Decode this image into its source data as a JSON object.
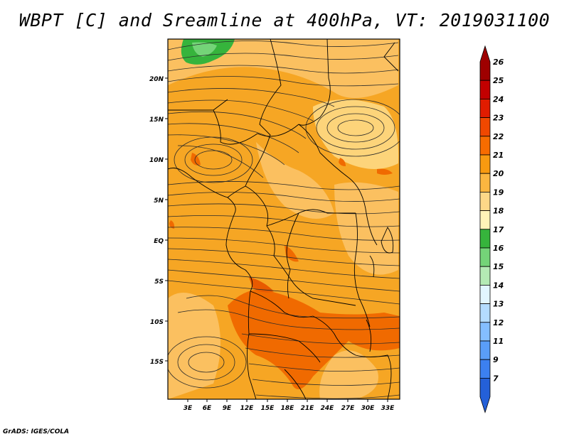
{
  "title": "WBPT [C] and Sreamline at 400hPa, VT: 2019031100",
  "footer": "GrADS: IGES/COLA",
  "map": {
    "lat_labels": [
      "20N",
      "15N",
      "10N",
      "5N",
      "EQ",
      "5S",
      "10S",
      "15S"
    ],
    "lon_labels": [
      "3E",
      "6E",
      "9E",
      "12E",
      "15E",
      "18E",
      "21E",
      "24E",
      "27E",
      "30E",
      "33E"
    ],
    "field": "wet-bulb potential temperature",
    "overlay": "streamlines"
  },
  "colorbar": {
    "labels": [
      "26",
      "25",
      "24",
      "23",
      "22",
      "21",
      "20",
      "19",
      "18",
      "17",
      "16",
      "15",
      "14",
      "13",
      "12",
      "11",
      "9",
      "7"
    ],
    "colors": [
      "#9e0000",
      "#c20000",
      "#e01c00",
      "#f04800",
      "#f76c00",
      "#f89a10",
      "#fbb640",
      "#fdd888",
      "#fff4b8",
      "#36b43c",
      "#74d478",
      "#b4eab4",
      "#e2f6ff",
      "#b4dcff",
      "#84beff",
      "#5a9ef8",
      "#3c80f0",
      "#2460d8"
    ]
  }
}
